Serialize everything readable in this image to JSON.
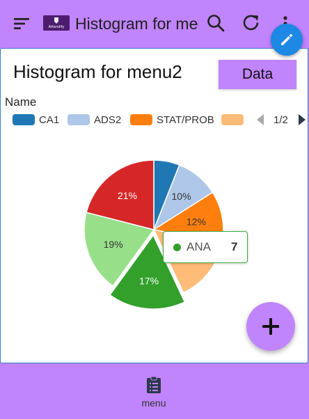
{
  "app": {
    "logo_text": "Attendify",
    "title": "Histogram for menu2"
  },
  "card": {
    "title": "Histogram for menu2",
    "data_button": "Data"
  },
  "legend": {
    "title": "Name",
    "page": "1/2"
  },
  "chart_data": {
    "type": "pie",
    "title": "Histogram for menu2",
    "legend_title": "Name",
    "legend_placement": "top",
    "slices": [
      {
        "name": "CA1",
        "percent": 6,
        "color": "#1f78b4",
        "label": ""
      },
      {
        "name": "ADS2",
        "percent": 10,
        "color": "#aec7e8",
        "label": "10%"
      },
      {
        "name": "STAT/PROB",
        "percent": 12,
        "color": "#ff7f0e",
        "label": "12%"
      },
      {
        "name": "",
        "percent": 15,
        "color": "#ffbb78",
        "label": ""
      },
      {
        "name": "ANA",
        "percent": 17,
        "color": "#33a02c",
        "label": "17%",
        "value": 7,
        "highlighted": true
      },
      {
        "name": "",
        "percent": 19,
        "color": "#98df8a",
        "label": "19%"
      },
      {
        "name": "",
        "percent": 21,
        "color": "#d62728",
        "label": "21%"
      }
    ]
  },
  "legend_items": [
    {
      "name": "CA1",
      "color": "#1f78b4"
    },
    {
      "name": "ADS2",
      "color": "#aec7e8"
    },
    {
      "name": "STAT/PROB",
      "color": "#ff7f0e"
    },
    {
      "name": "",
      "color": "#ffbb78"
    }
  ],
  "tooltip": {
    "name": "ANA",
    "value": "7",
    "color": "#33a02c"
  },
  "bottom_nav": {
    "label": "menu"
  },
  "icons": {
    "menu": "menu-icon",
    "search": "search-icon",
    "refresh": "refresh-icon",
    "more": "more-vert-icon",
    "edit": "pencil-icon",
    "add": "plus-icon",
    "nav": "checklist-icon"
  }
}
